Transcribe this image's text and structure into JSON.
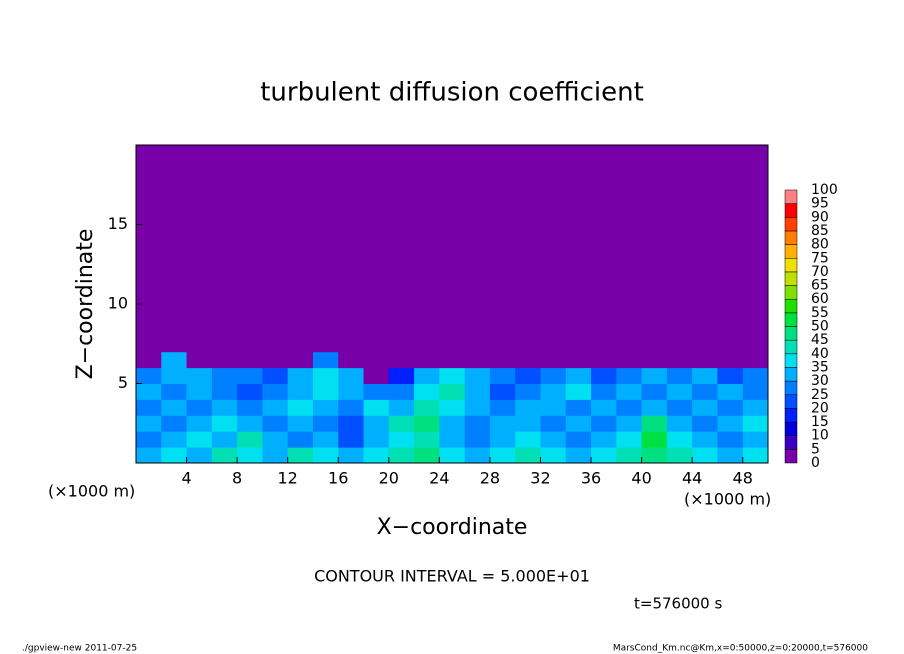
{
  "chart_data": {
    "type": "heatmap",
    "title": "turbulent diffusion coefficient",
    "x_label": "X−coordinate",
    "y_label": "Z−coordinate",
    "x_unit": "(×1000 m)",
    "y_unit": "(×1000 m)",
    "contour_note": "CONTOUR INTERVAL = 5.000E+01",
    "time_note": "t=576000 s",
    "footer_left": "./gpview-new   2011-07-25",
    "footer_right": "MarsCond_Km.nc@Km,x=0:50000,z=0:20000,t=576000",
    "xlim": [
      0,
      50
    ],
    "ylim": [
      0,
      20
    ],
    "xticks": [
      4,
      8,
      12,
      16,
      20,
      24,
      28,
      32,
      36,
      40,
      44,
      48
    ],
    "yticks": [
      5,
      10,
      15
    ],
    "x_edges": [
      0,
      2,
      4,
      6,
      8,
      10,
      12,
      14,
      16,
      18,
      20,
      22,
      24,
      26,
      28,
      30,
      32,
      34,
      36,
      38,
      40,
      42,
      44,
      46,
      48,
      50
    ],
    "z_edges": [
      0,
      1,
      2,
      3,
      4,
      5,
      6,
      7,
      20
    ],
    "values": [
      [
        30,
        35,
        30,
        40,
        35,
        30,
        40,
        35,
        30,
        35,
        40,
        45,
        35,
        30,
        35,
        40,
        35,
        30,
        35,
        40,
        45,
        40,
        35,
        30,
        35
      ],
      [
        25,
        30,
        35,
        30,
        40,
        30,
        25,
        30,
        20,
        30,
        35,
        40,
        30,
        25,
        30,
        35,
        30,
        25,
        30,
        35,
        50,
        35,
        30,
        25,
        30
      ],
      [
        30,
        25,
        30,
        35,
        30,
        25,
        30,
        25,
        20,
        30,
        40,
        45,
        30,
        25,
        30,
        30,
        25,
        30,
        25,
        30,
        45,
        30,
        25,
        30,
        35
      ],
      [
        25,
        30,
        25,
        30,
        25,
        30,
        35,
        30,
        25,
        35,
        30,
        40,
        35,
        30,
        25,
        30,
        30,
        25,
        30,
        25,
        30,
        25,
        30,
        25,
        30
      ],
      [
        30,
        25,
        30,
        25,
        20,
        25,
        30,
        35,
        30,
        25,
        25,
        35,
        40,
        30,
        20,
        25,
        30,
        35,
        25,
        30,
        25,
        30,
        25,
        30,
        25
      ],
      [
        25,
        30,
        30,
        25,
        25,
        20,
        30,
        35,
        30,
        0,
        15,
        30,
        35,
        30,
        25,
        20,
        25,
        30,
        20,
        25,
        30,
        25,
        30,
        20,
        25
      ],
      [
        0,
        30,
        0,
        0,
        0,
        0,
        0,
        25,
        0,
        0,
        0,
        0,
        0,
        0,
        0,
        0,
        0,
        0,
        0,
        0,
        0,
        0,
        0,
        0,
        0
      ],
      [
        0,
        0,
        0,
        0,
        0,
        0,
        0,
        0,
        0,
        0,
        0,
        0,
        0,
        0,
        0,
        0,
        0,
        0,
        0,
        0,
        0,
        0,
        0,
        0,
        0
      ]
    ],
    "levels": [
      0,
      5,
      10,
      15,
      20,
      25,
      30,
      35,
      40,
      45,
      50,
      55,
      60,
      65,
      70,
      75,
      80,
      85,
      90,
      95,
      100
    ],
    "colors": [
      "#7800a8",
      "#3c00c0",
      "#0000dc",
      "#0020ff",
      "#0050ff",
      "#0080ff",
      "#00b0ff",
      "#00e0f0",
      "#00e0b4",
      "#00e080",
      "#00e040",
      "#20e000",
      "#80e000",
      "#c0e000",
      "#f0e000",
      "#ffb000",
      "#ff8000",
      "#ff4000",
      "#ff0000",
      "#ff8080"
    ]
  }
}
